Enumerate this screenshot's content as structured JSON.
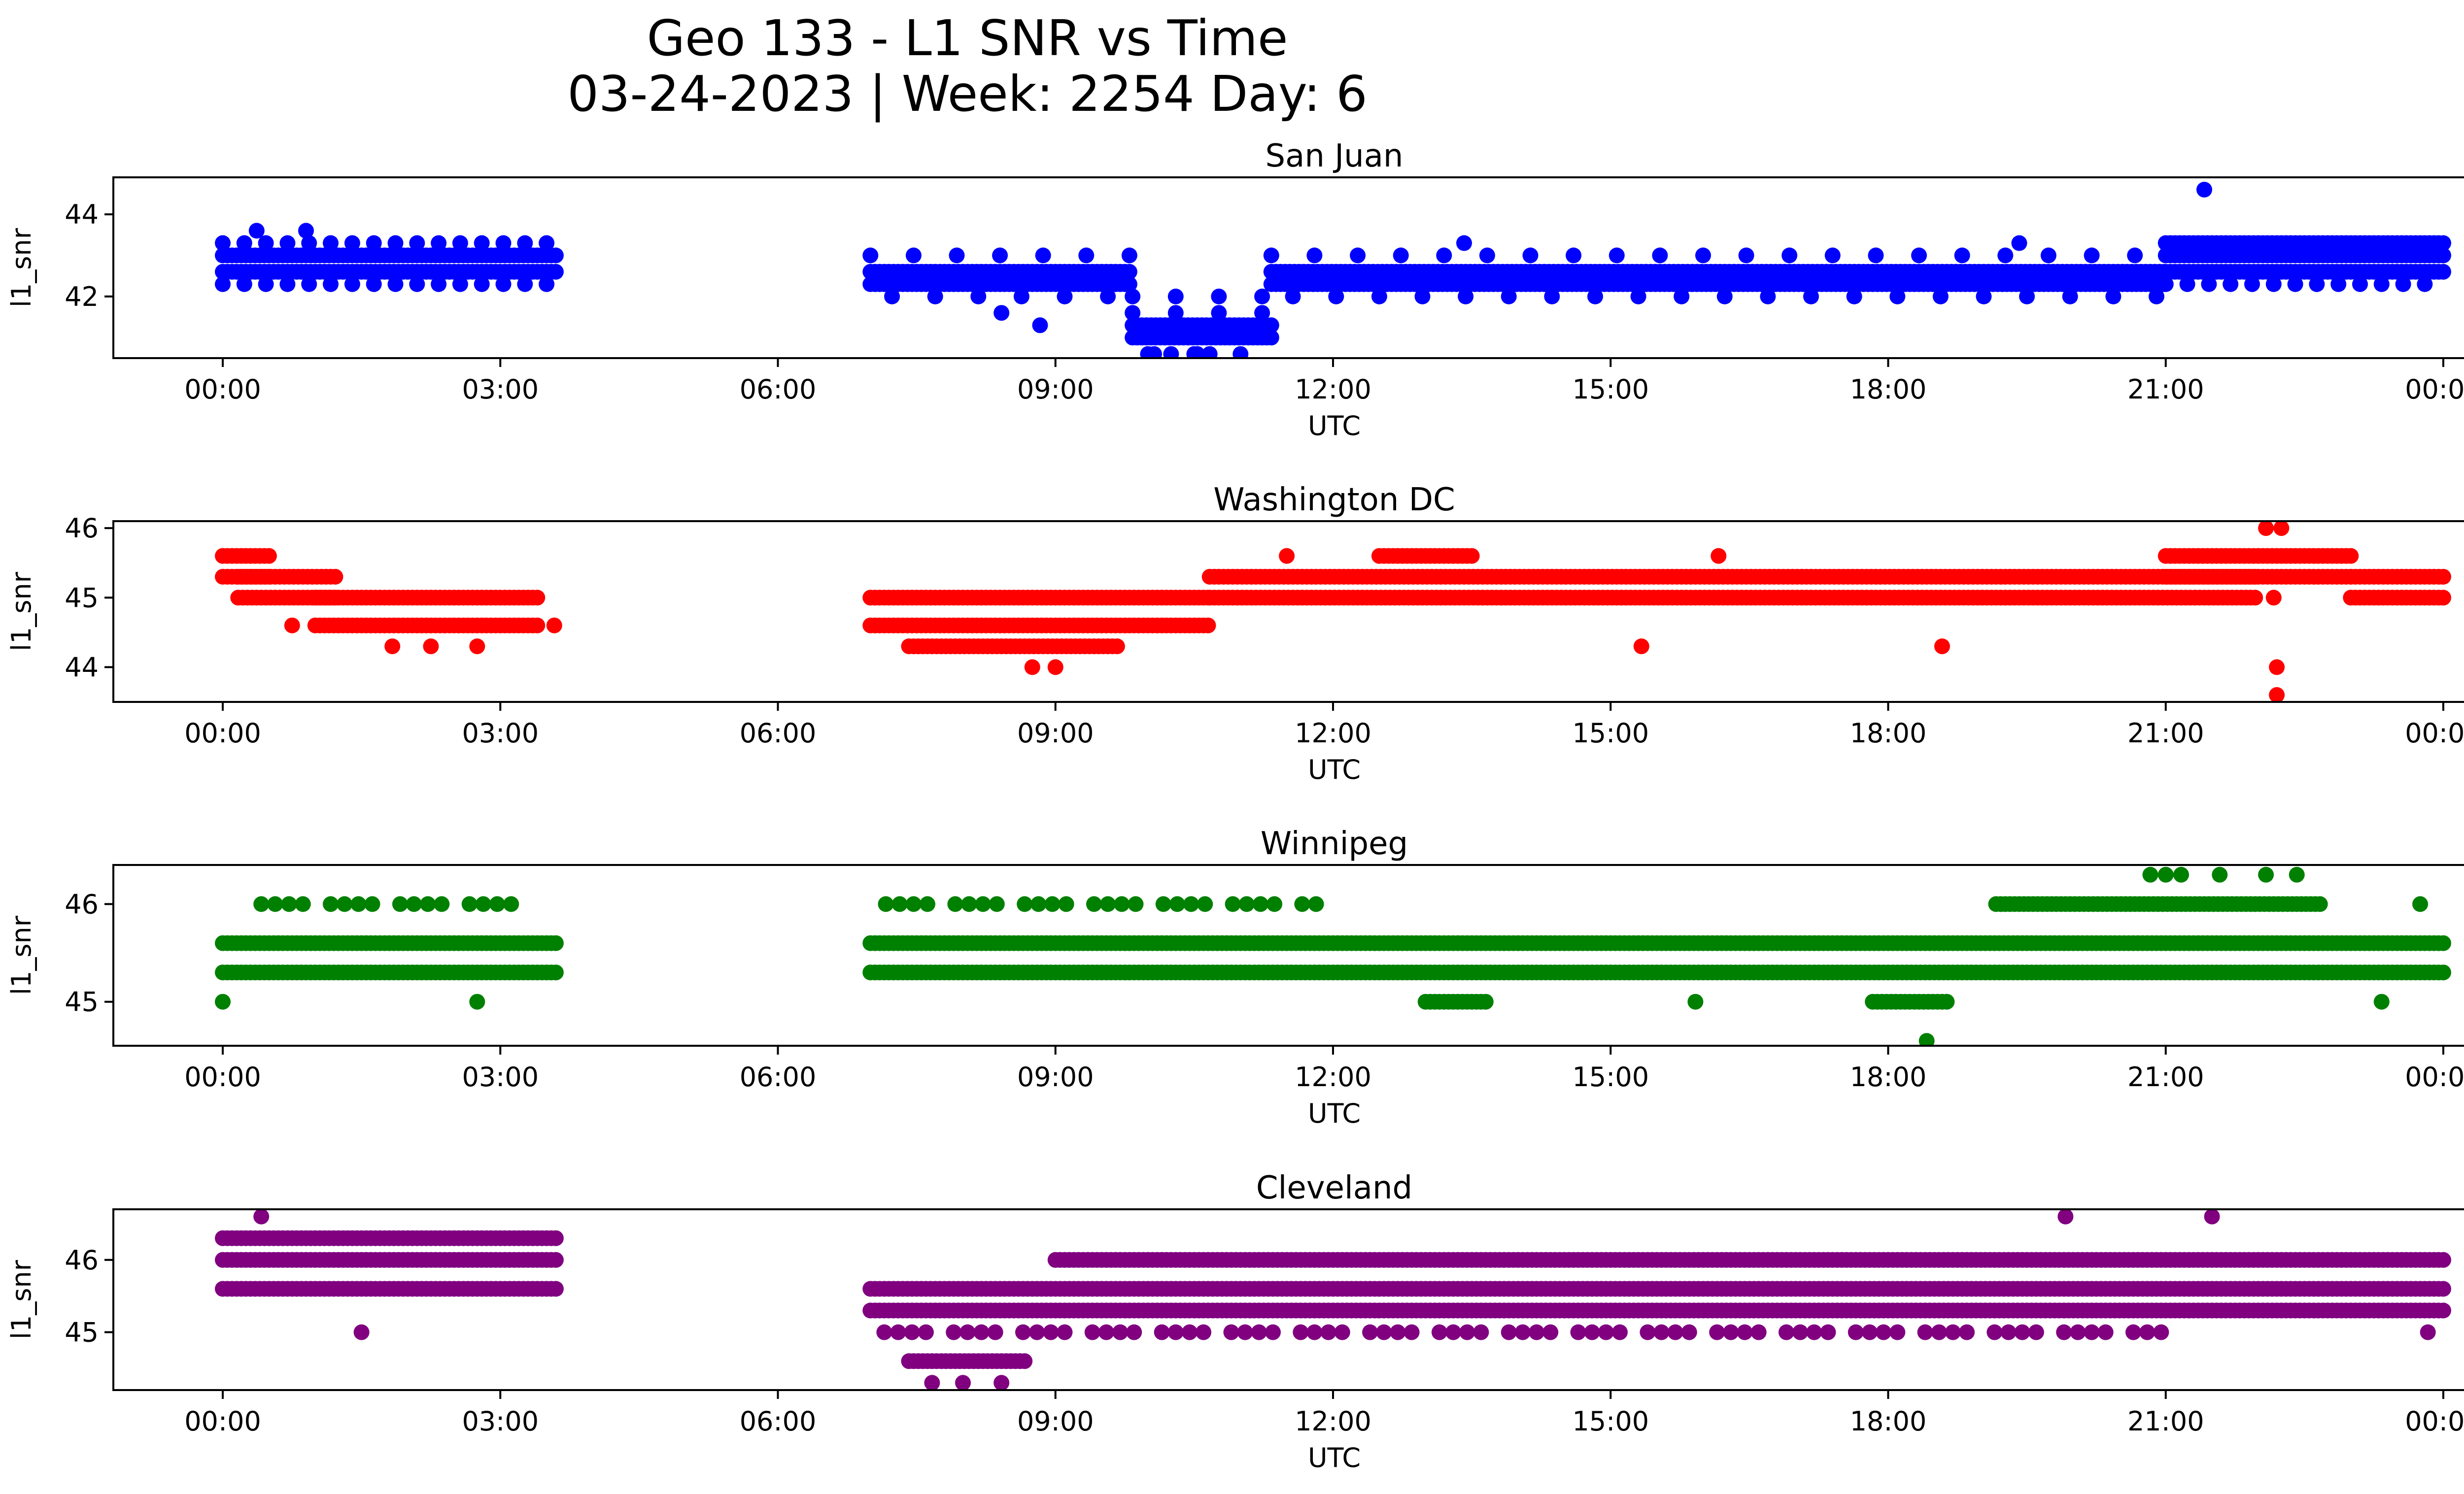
{
  "figure": {
    "title_line1": "Geo 133 - L1 SNR vs Time",
    "title_line2": "03-24-2023 | Week: 2254 Day: 6"
  },
  "chart_data": [
    {
      "type": "scatter",
      "title": "San Juan",
      "xlabel": "UTC",
      "ylabel": "l1_snr",
      "color": "#0000ff",
      "xlim": [
        "23:24",
        "24:32"
      ],
      "ylim": [
        40.5,
        44.9
      ],
      "xticks": [
        "00:00",
        "03:00",
        "06:00",
        "09:00",
        "12:00",
        "15:00",
        "18:00",
        "21:00",
        "00:00"
      ],
      "yticks": [
        42,
        44
      ],
      "y_levels": [
        42.3,
        42.6,
        43.0,
        43.3
      ],
      "segments": [
        {
          "x_start": "00:00",
          "x_end": "03:36",
          "levels": [
            42.6,
            43.0
          ],
          "note_levels_sparse": [
            42.3,
            43.3
          ]
        },
        {
          "x_start": "07:00",
          "x_end": "09:50",
          "levels": [
            42.3,
            42.6
          ],
          "note_levels_sparse": [
            42.0,
            43.0
          ]
        },
        {
          "x_start": "09:50",
          "x_end": "11:20",
          "levels": [
            41.0,
            41.3
          ],
          "note_levels_sparse": [
            40.6,
            41.6,
            42.0
          ]
        },
        {
          "x_start": "11:20",
          "x_end": "21:00",
          "levels": [
            42.3,
            42.6
          ],
          "note_levels_sparse": [
            42.0,
            43.0
          ]
        },
        {
          "x_start": "21:00",
          "x_end": "24:00",
          "levels": [
            42.6,
            43.0,
            43.3
          ],
          "note_levels_sparse": [
            42.3
          ]
        }
      ],
      "outliers": [
        {
          "x": "00:22",
          "y": 43.6
        },
        {
          "x": "00:54",
          "y": 43.6
        },
        {
          "x": "08:50",
          "y": 41.3
        },
        {
          "x": "08:25",
          "y": 41.6
        },
        {
          "x": "10:00",
          "y": 40.6
        },
        {
          "x": "10:15",
          "y": 40.6
        },
        {
          "x": "10:30",
          "y": 40.6
        },
        {
          "x": "10:40",
          "y": 40.6
        },
        {
          "x": "13:25",
          "y": 43.3
        },
        {
          "x": "19:25",
          "y": 43.3
        },
        {
          "x": "21:25",
          "y": 44.6
        }
      ]
    },
    {
      "type": "scatter",
      "title": "Washington DC",
      "xlabel": "UTC",
      "ylabel": "l1_snr",
      "color": "#ff0000",
      "xlim": [
        "23:24",
        "24:32"
      ],
      "ylim": [
        43.5,
        46.1
      ],
      "xticks": [
        "00:00",
        "03:00",
        "06:00",
        "09:00",
        "12:00",
        "15:00",
        "18:00",
        "21:00",
        "00:00"
      ],
      "yticks": [
        44,
        45,
        46
      ],
      "segments": [
        {
          "x_start": "00:00",
          "x_end": "00:30",
          "levels": [
            45.3,
            45.6
          ]
        },
        {
          "x_start": "00:10",
          "x_end": "01:15",
          "levels": [
            45.0,
            45.3
          ]
        },
        {
          "x_start": "01:00",
          "x_end": "03:25",
          "levels": [
            44.6,
            45.0
          ]
        },
        {
          "x_start": "07:00",
          "x_end": "10:40",
          "levels": [
            44.6,
            45.0
          ]
        },
        {
          "x_start": "07:25",
          "x_end": "09:40",
          "levels": [
            44.3
          ]
        },
        {
          "x_start": "10:40",
          "x_end": "22:00",
          "levels": [
            45.0,
            45.3
          ]
        },
        {
          "x_start": "12:30",
          "x_end": "13:30",
          "levels": [
            45.6
          ]
        },
        {
          "x_start": "21:00",
          "x_end": "23:00",
          "levels": [
            45.3,
            45.6
          ]
        },
        {
          "x_start": "23:00",
          "x_end": "24:00",
          "levels": [
            45.0,
            45.3
          ]
        }
      ],
      "outliers": [
        {
          "x": "00:45",
          "y": 44.6
        },
        {
          "x": "01:50",
          "y": 44.3
        },
        {
          "x": "02:15",
          "y": 44.3
        },
        {
          "x": "02:45",
          "y": 44.3
        },
        {
          "x": "03:35",
          "y": 44.6
        },
        {
          "x": "08:45",
          "y": 44.0
        },
        {
          "x": "09:00",
          "y": 44.0
        },
        {
          "x": "11:30",
          "y": 45.6
        },
        {
          "x": "15:20",
          "y": 44.3
        },
        {
          "x": "16:10",
          "y": 45.6
        },
        {
          "x": "18:35",
          "y": 44.3
        },
        {
          "x": "22:05",
          "y": 46.0
        },
        {
          "x": "22:15",
          "y": 46.0
        },
        {
          "x": "22:12",
          "y": 44.0
        },
        {
          "x": "22:12",
          "y": 43.6
        },
        {
          "x": "22:10",
          "y": 45.0
        }
      ]
    },
    {
      "type": "scatter",
      "title": "Winnipeg",
      "xlabel": "UTC",
      "ylabel": "l1_snr",
      "color": "#008000",
      "xlim": [
        "23:24",
        "24:32"
      ],
      "ylim": [
        44.55,
        46.4
      ],
      "xticks": [
        "00:00",
        "03:00",
        "06:00",
        "09:00",
        "12:00",
        "15:00",
        "18:00",
        "21:00",
        "00:00"
      ],
      "yticks": [
        45,
        46
      ],
      "segments": [
        {
          "x_start": "00:00",
          "x_end": "03:36",
          "levels": [
            45.3,
            45.6
          ]
        },
        {
          "x_start": "00:25",
          "x_end": "03:10",
          "levels": [
            46.0
          ],
          "sparse": true
        },
        {
          "x_start": "07:00",
          "x_end": "24:00",
          "levels": [
            45.3,
            45.6
          ]
        },
        {
          "x_start": "07:10",
          "x_end": "11:50",
          "levels": [
            46.0
          ],
          "sparse": true
        },
        {
          "x_start": "19:10",
          "x_end": "22:40",
          "levels": [
            46.0
          ]
        },
        {
          "x_start": "17:50",
          "x_end": "18:40",
          "levels": [
            45.0
          ]
        },
        {
          "x_start": "13:00",
          "x_end": "13:40",
          "levels": [
            45.0
          ]
        }
      ],
      "outliers": [
        {
          "x": "00:00",
          "y": 45.0
        },
        {
          "x": "02:45",
          "y": 45.0
        },
        {
          "x": "15:55",
          "y": 45.0
        },
        {
          "x": "18:25",
          "y": 44.6
        },
        {
          "x": "20:50",
          "y": 46.3
        },
        {
          "x": "21:00",
          "y": 46.3
        },
        {
          "x": "21:10",
          "y": 46.3
        },
        {
          "x": "21:35",
          "y": 46.3
        },
        {
          "x": "22:05",
          "y": 46.3
        },
        {
          "x": "22:25",
          "y": 46.3
        },
        {
          "x": "23:20",
          "y": 45.0
        },
        {
          "x": "23:45",
          "y": 46.0
        }
      ]
    },
    {
      "type": "scatter",
      "title": "Cleveland",
      "xlabel": "UTC",
      "ylabel": "l1_snr",
      "color": "#800080",
      "xlim": [
        "23:24",
        "24:32"
      ],
      "ylim": [
        44.2,
        46.7
      ],
      "xticks": [
        "00:00",
        "03:00",
        "06:00",
        "09:00",
        "12:00",
        "15:00",
        "18:00",
        "21:00",
        "00:00"
      ],
      "yticks": [
        45,
        46
      ],
      "segments": [
        {
          "x_start": "00:00",
          "x_end": "03:36",
          "levels": [
            45.6,
            46.0,
            46.3
          ]
        },
        {
          "x_start": "07:00",
          "x_end": "24:00",
          "levels": [
            45.3,
            45.6
          ]
        },
        {
          "x_start": "09:00",
          "x_end": "24:00",
          "levels": [
            46.0
          ]
        },
        {
          "x_start": "07:00",
          "x_end": "21:00",
          "levels": [
            45.0
          ],
          "sparse": true
        },
        {
          "x_start": "07:25",
          "x_end": "08:40",
          "levels": [
            44.6
          ]
        }
      ],
      "outliers": [
        {
          "x": "00:25",
          "y": 46.6
        },
        {
          "x": "01:30",
          "y": 45.0
        },
        {
          "x": "07:40",
          "y": 44.3
        },
        {
          "x": "08:00",
          "y": 44.3
        },
        {
          "x": "08:25",
          "y": 44.3
        },
        {
          "x": "19:55",
          "y": 46.6
        },
        {
          "x": "21:30",
          "y": 46.6
        },
        {
          "x": "23:50",
          "y": 45.0
        }
      ]
    }
  ]
}
